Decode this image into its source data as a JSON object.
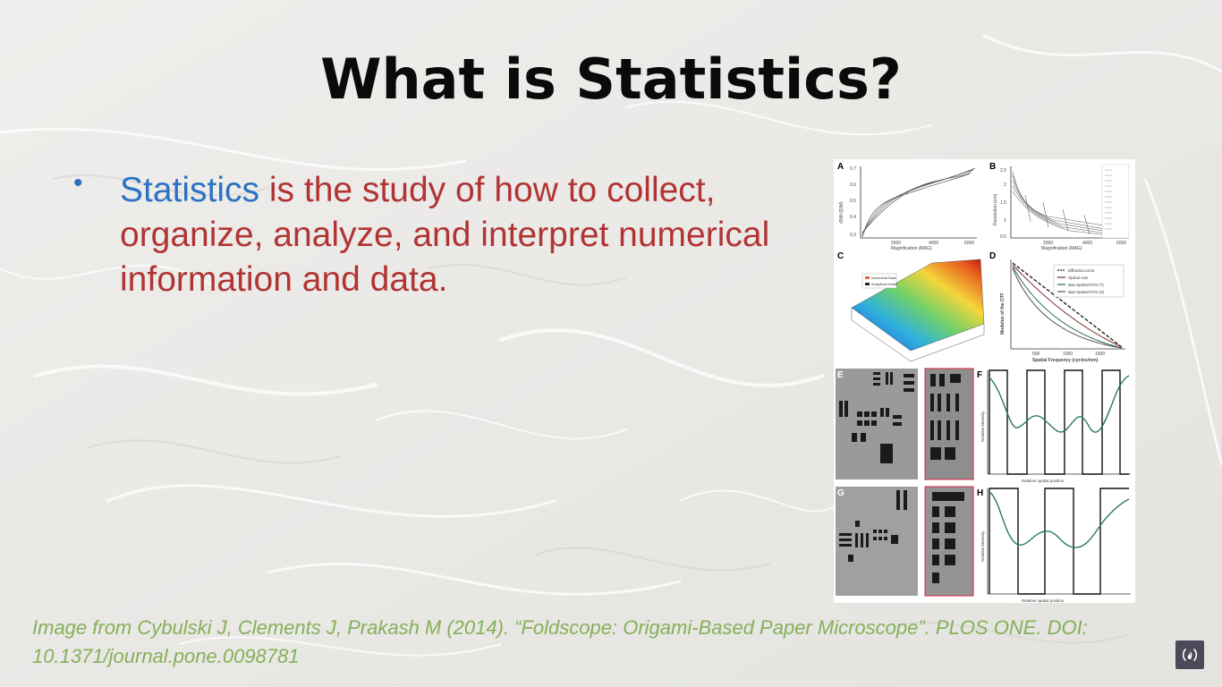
{
  "slide": {
    "title": "What is Statistics?",
    "bullet_symbol": "•",
    "bullet_keyword": "Statistics",
    "bullet_rest": " is the study of how to collect, organize, analyze, and interpret numerical information and data.",
    "caption": "Image from Cybulski J, Clements J, Prakash M (2014). “Foldscope: Origami-Based Paper Microscope”. PLOS ONE. DOI: 10.1371/journal.pone.0098781",
    "colors": {
      "keyword": "#2a73c4",
      "body_text": "#b13434",
      "caption": "#86b05a",
      "title": "#0a0a0a"
    }
  },
  "figure": {
    "panel_labels": [
      "A",
      "B",
      "C",
      "D",
      "E",
      "F",
      "G",
      "H"
    ],
    "panel_a": {
      "xlabel": "Magnification (MAG)",
      "ylabel": "rDIM (DIM)",
      "xticks": [
        "2000",
        "4000",
        "6000"
      ],
      "yticks": [
        "0.7",
        "0.6",
        "0.5",
        "0.4",
        "0.3"
      ]
    },
    "panel_b": {
      "xlabel": "Magnification (MAG)",
      "ylabel": "Resolution (um)",
      "xticks": [
        "2000",
        "4000",
        "6000"
      ],
      "yticks": [
        "2.5",
        "2",
        "1.5",
        "1",
        "0.5"
      ]
    },
    "panel_c": {
      "legend": [
        "Numerical Data",
        "Analytical Model"
      ]
    },
    "panel_d": {
      "xlabel": "Spatial Frequency (cycles/mm)",
      "ylabel": "Modulus of the OTF",
      "xticks": [
        "500",
        "1000",
        "1500"
      ],
      "legend": [
        "Diffraction Limit",
        "Optical Axis",
        "Max Optimal FOV (T)",
        "Max Optimal FOV (S)"
      ]
    },
    "panel_f": {
      "xlabel": "Relative spatial position",
      "ylabel": "Relative intensity"
    },
    "panel_h": {
      "xlabel": "Relative spatial position",
      "ylabel": "Relative intensity"
    }
  },
  "icons": {
    "logo": "freecodecamp-logo-icon"
  }
}
